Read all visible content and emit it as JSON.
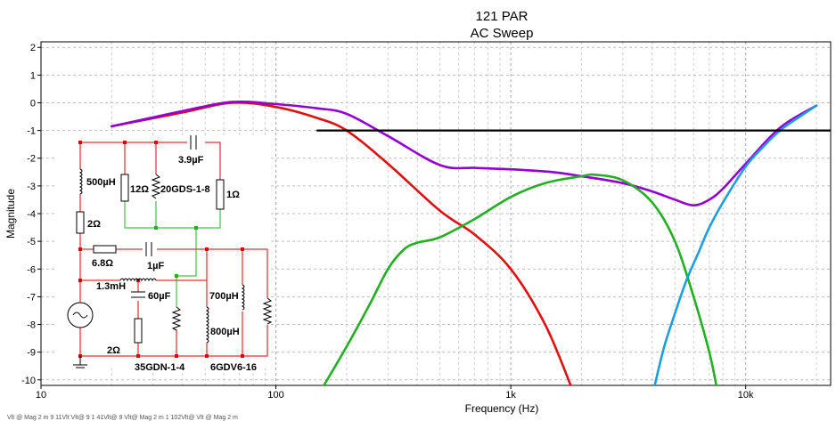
{
  "chart_data": {
    "type": "line",
    "title": "121 PAR",
    "subtitle": "AC Sweep",
    "xlabel": "Frequency (Hz)",
    "ylabel": "Magnitude",
    "x_scale": "log",
    "xlim": [
      10,
      23000
    ],
    "ylim": [
      -10.2,
      2.2
    ],
    "grid": true,
    "x_ticks": [
      {
        "value": 10,
        "label": "10"
      },
      {
        "value": 100,
        "label": "100"
      },
      {
        "value": 1000,
        "label": "1k"
      },
      {
        "value": 10000,
        "label": "10k"
      }
    ],
    "y_ticks": [
      {
        "value": 2,
        "label": "2"
      },
      {
        "value": 1,
        "label": "1"
      },
      {
        "value": 0,
        "label": "0"
      },
      {
        "value": -1,
        "label": "-1"
      },
      {
        "value": -2,
        "label": "-2"
      },
      {
        "value": -3,
        "label": "-3"
      },
      {
        "value": -4,
        "label": "-4"
      },
      {
        "value": -5,
        "label": "-5"
      },
      {
        "value": -6,
        "label": "-6"
      },
      {
        "value": -7,
        "label": "-7"
      },
      {
        "value": -8,
        "label": "-8"
      },
      {
        "value": -9,
        "label": "-9"
      },
      {
        "value": -10,
        "label": "-10"
      }
    ],
    "series": [
      {
        "color": "#e01010",
        "x": [
          20,
          40,
          65,
          100,
          150,
          200,
          300,
          500,
          700,
          1000,
          1400,
          1800
        ],
        "y": [
          -0.85,
          -0.35,
          0.0,
          -0.15,
          -0.55,
          -1.0,
          -2.2,
          -3.9,
          -4.75,
          -6.0,
          -8.0,
          -10.2
        ]
      },
      {
        "color": "#9400d3",
        "x": [
          20,
          40,
          65,
          100,
          150,
          200,
          300,
          500,
          700,
          1000,
          1500,
          2000,
          3000,
          4000,
          5000,
          6000,
          7000,
          8000,
          10000,
          14000,
          20000
        ],
        "y": [
          -0.85,
          -0.3,
          0.03,
          -0.05,
          -0.2,
          -0.4,
          -1.2,
          -2.25,
          -2.35,
          -2.4,
          -2.5,
          -2.65,
          -2.9,
          -3.2,
          -3.5,
          -3.7,
          -3.5,
          -3.1,
          -2.2,
          -0.9,
          -0.1
        ]
      },
      {
        "color": "#22b022",
        "x": [
          160,
          200,
          250,
          300,
          350,
          400,
          500,
          700,
          1000,
          1400,
          2000,
          2300,
          3000,
          4000,
          5000,
          6000,
          7000,
          7500
        ],
        "y": [
          -10.2,
          -8.8,
          -7.3,
          -6.0,
          -5.3,
          -5.05,
          -4.85,
          -4.2,
          -3.4,
          -2.9,
          -2.65,
          -2.6,
          -2.8,
          -3.6,
          -5.0,
          -7.0,
          -9.0,
          -10.2
        ]
      },
      {
        "color": "#1e9ee0",
        "x": [
          4100,
          4500,
          5000,
          5600,
          6300,
          7000,
          8000,
          10000,
          12000,
          14000,
          17000,
          20000
        ],
        "y": [
          -10.2,
          -8.8,
          -7.6,
          -6.4,
          -5.4,
          -4.5,
          -3.6,
          -2.3,
          -1.55,
          -1.0,
          -0.5,
          -0.1
        ]
      },
      {
        "color": "#000000",
        "x": [
          150,
          23000
        ],
        "y": [
          -1.0,
          -1.0
        ]
      }
    ]
  },
  "schematic": {
    "labels": [
      "500µH",
      "2Ω",
      "6.8Ω",
      "1µF",
      "1.3mH",
      "2Ω",
      "60µF",
      "35GDN-1-4",
      "12Ω",
      "20GDS-1-8",
      "1Ω",
      "3.9µF",
      "700µH",
      "800µH",
      "6GDV6-16"
    ]
  },
  "footer": {
    "cursor_readout": "Vlt @ Mag 2 m  9 11Vlt  Vlt@ 9  1 41Vlt@ 9 Vlt@ Mag 2 m  1 102Vlt@ Vlt @ Mag 2 m"
  }
}
